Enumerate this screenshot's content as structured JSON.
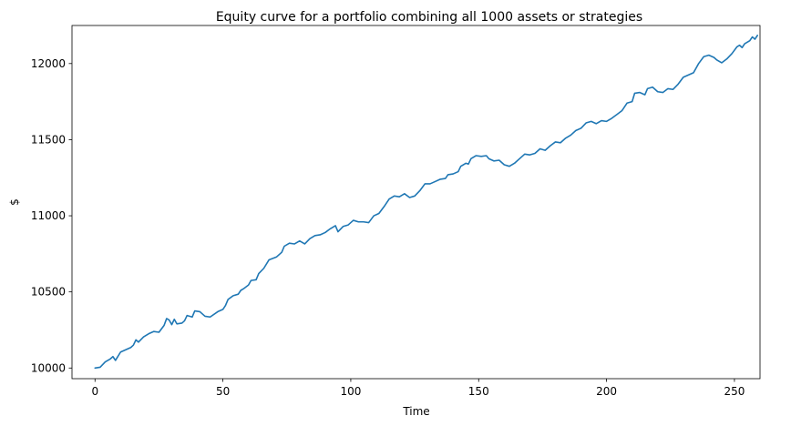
{
  "chart_data": {
    "type": "line",
    "title": "Equity curve for a portfolio combining all 1000 assets or strategies",
    "xlabel": "Time",
    "ylabel": "$",
    "xlim": [
      -9,
      260
    ],
    "ylim": [
      9930,
      12250
    ],
    "xticks": [
      0,
      50,
      100,
      150,
      200,
      250
    ],
    "yticks": [
      10000,
      10500,
      11000,
      11500,
      12000
    ],
    "grid": false,
    "legend": "none",
    "series": [
      {
        "color": "#1f77b4",
        "points": [
          [
            0,
            10000
          ],
          [
            2,
            10005
          ],
          [
            4,
            10040
          ],
          [
            6,
            10060
          ],
          [
            7,
            10075
          ],
          [
            8,
            10050
          ],
          [
            10,
            10105
          ],
          [
            12,
            10120
          ],
          [
            14,
            10135
          ],
          [
            15,
            10150
          ],
          [
            16,
            10185
          ],
          [
            17,
            10170
          ],
          [
            19,
            10205
          ],
          [
            21,
            10225
          ],
          [
            23,
            10240
          ],
          [
            25,
            10235
          ],
          [
            27,
            10280
          ],
          [
            28,
            10325
          ],
          [
            29,
            10315
          ],
          [
            30,
            10285
          ],
          [
            31,
            10320
          ],
          [
            32,
            10290
          ],
          [
            34,
            10295
          ],
          [
            35,
            10310
          ],
          [
            36,
            10345
          ],
          [
            38,
            10335
          ],
          [
            39,
            10375
          ],
          [
            41,
            10370
          ],
          [
            43,
            10340
          ],
          [
            45,
            10335
          ],
          [
            48,
            10370
          ],
          [
            50,
            10385
          ],
          [
            51,
            10410
          ],
          [
            52,
            10450
          ],
          [
            54,
            10475
          ],
          [
            56,
            10485
          ],
          [
            57,
            10510
          ],
          [
            58,
            10520
          ],
          [
            60,
            10545
          ],
          [
            61,
            10575
          ],
          [
            63,
            10580
          ],
          [
            64,
            10620
          ],
          [
            66,
            10655
          ],
          [
            68,
            10710
          ],
          [
            71,
            10730
          ],
          [
            73,
            10760
          ],
          [
            74,
            10800
          ],
          [
            76,
            10820
          ],
          [
            78,
            10815
          ],
          [
            80,
            10835
          ],
          [
            82,
            10815
          ],
          [
            84,
            10850
          ],
          [
            86,
            10870
          ],
          [
            88,
            10875
          ],
          [
            90,
            10890
          ],
          [
            92,
            10915
          ],
          [
            94,
            10935
          ],
          [
            95,
            10895
          ],
          [
            97,
            10930
          ],
          [
            99,
            10940
          ],
          [
            101,
            10970
          ],
          [
            103,
            10960
          ],
          [
            105,
            10960
          ],
          [
            107,
            10955
          ],
          [
            109,
            11000
          ],
          [
            111,
            11015
          ],
          [
            113,
            11060
          ],
          [
            115,
            11110
          ],
          [
            117,
            11130
          ],
          [
            119,
            11125
          ],
          [
            121,
            11145
          ],
          [
            123,
            11120
          ],
          [
            125,
            11130
          ],
          [
            127,
            11165
          ],
          [
            129,
            11210
          ],
          [
            131,
            11210
          ],
          [
            133,
            11225
          ],
          [
            135,
            11240
          ],
          [
            137,
            11245
          ],
          [
            138,
            11270
          ],
          [
            140,
            11275
          ],
          [
            142,
            11290
          ],
          [
            143,
            11325
          ],
          [
            145,
            11345
          ],
          [
            146,
            11340
          ],
          [
            147,
            11375
          ],
          [
            149,
            11395
          ],
          [
            151,
            11390
          ],
          [
            153,
            11395
          ],
          [
            154,
            11375
          ],
          [
            156,
            11360
          ],
          [
            158,
            11365
          ],
          [
            160,
            11335
          ],
          [
            162,
            11325
          ],
          [
            164,
            11345
          ],
          [
            166,
            11375
          ],
          [
            168,
            11405
          ],
          [
            170,
            11400
          ],
          [
            172,
            11410
          ],
          [
            174,
            11440
          ],
          [
            176,
            11430
          ],
          [
            178,
            11460
          ],
          [
            180,
            11485
          ],
          [
            182,
            11480
          ],
          [
            184,
            11510
          ],
          [
            186,
            11530
          ],
          [
            188,
            11560
          ],
          [
            190,
            11575
          ],
          [
            192,
            11610
          ],
          [
            194,
            11620
          ],
          [
            196,
            11605
          ],
          [
            198,
            11625
          ],
          [
            200,
            11620
          ],
          [
            202,
            11640
          ],
          [
            204,
            11665
          ],
          [
            206,
            11690
          ],
          [
            208,
            11740
          ],
          [
            210,
            11750
          ],
          [
            211,
            11805
          ],
          [
            213,
            11810
          ],
          [
            215,
            11795
          ],
          [
            216,
            11835
          ],
          [
            218,
            11845
          ],
          [
            220,
            11815
          ],
          [
            222,
            11810
          ],
          [
            224,
            11835
          ],
          [
            226,
            11830
          ],
          [
            228,
            11865
          ],
          [
            230,
            11910
          ],
          [
            232,
            11925
          ],
          [
            234,
            11940
          ],
          [
            236,
            12000
          ],
          [
            238,
            12045
          ],
          [
            240,
            12055
          ],
          [
            242,
            12040
          ],
          [
            243,
            12025
          ],
          [
            245,
            12005
          ],
          [
            247,
            12030
          ],
          [
            249,
            12065
          ],
          [
            251,
            12110
          ],
          [
            252,
            12120
          ],
          [
            253,
            12105
          ],
          [
            254,
            12130
          ],
          [
            256,
            12150
          ],
          [
            257,
            12175
          ],
          [
            258,
            12160
          ],
          [
            259,
            12185
          ]
        ]
      }
    ]
  }
}
